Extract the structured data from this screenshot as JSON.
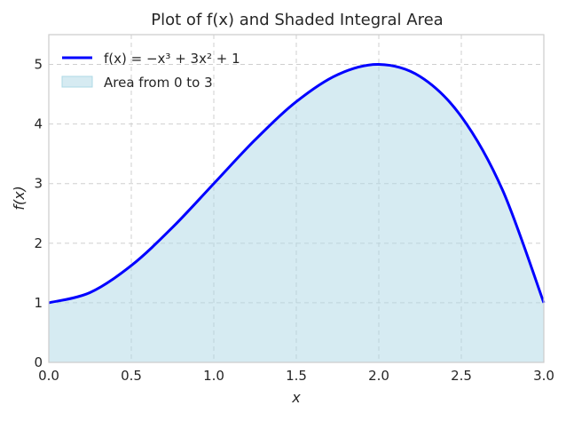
{
  "chart_data": {
    "type": "line",
    "title": "Plot of f(x) and Shaded Integral Area",
    "xlabel": "x",
    "ylabel": "f(x)",
    "xlim": [
      0,
      3
    ],
    "ylim": [
      0,
      5.5
    ],
    "x_ticks": [
      "0.0",
      "0.5",
      "1.0",
      "1.5",
      "2.0",
      "2.5",
      "3.0"
    ],
    "y_ticks": [
      "0",
      "1",
      "2",
      "3",
      "4",
      "5"
    ],
    "grid": true,
    "legend_position": "top-left",
    "series": [
      {
        "name": "f(x) = −x³ + 3x² + 1",
        "kind": "line",
        "color": "#0000ff",
        "x": [
          0,
          0.25,
          0.5,
          0.75,
          1.0,
          1.25,
          1.5,
          1.75,
          2.0,
          2.25,
          2.5,
          2.75,
          3.0
        ],
        "y": [
          1,
          1.172,
          1.625,
          2.266,
          3.0,
          3.734,
          4.375,
          4.828,
          5.0,
          4.797,
          4.125,
          2.891,
          1.0
        ]
      },
      {
        "name": "Area from 0 to 3",
        "kind": "area",
        "color": "#add8e6",
        "x_range": [
          0,
          3
        ]
      }
    ]
  }
}
